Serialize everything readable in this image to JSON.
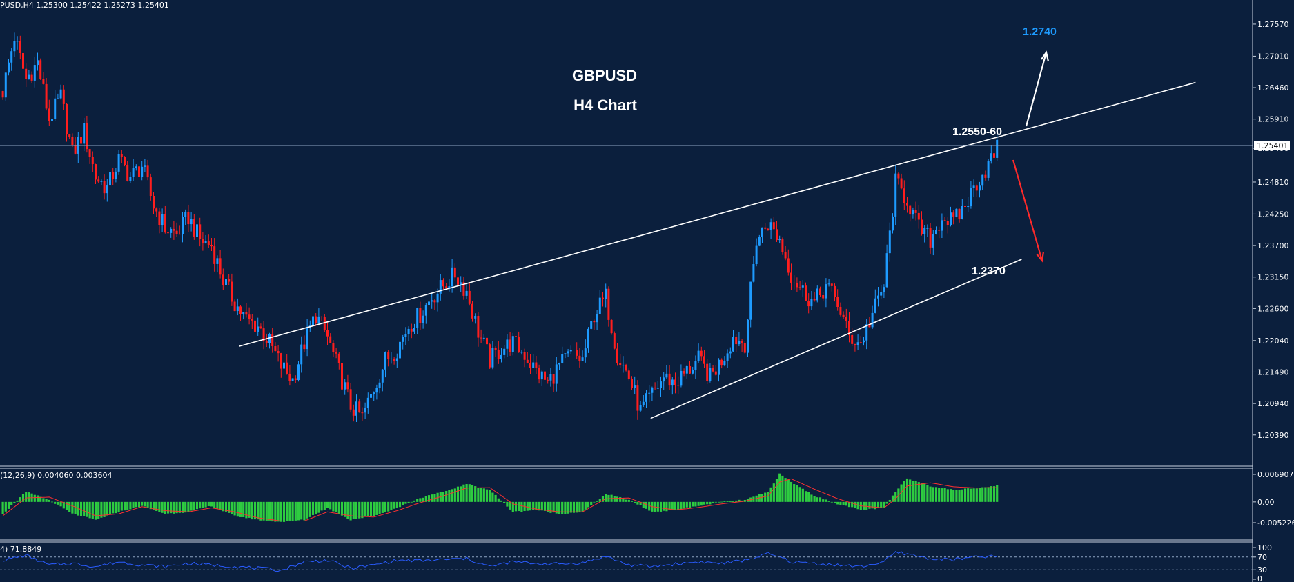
{
  "header": {
    "symbol_line": "PUSD,H4  1.25300 1.25422 1.25273 1.25401"
  },
  "chart_title": {
    "line1": "GBPUSD",
    "line2": "H4 Chart"
  },
  "annotations": {
    "resistance_label": "1.2550-60",
    "target_up_label": "1.2740",
    "target_down_label": "1.2370"
  },
  "colors": {
    "background": "#0b1f3d",
    "bull_candle": "#1e9bff",
    "bear_candle": "#ff1e1e",
    "histogram": "#2ecc40",
    "signal_line": "#ff3030",
    "rsi_line": "#2a5cff",
    "trend_line": "#ffffff",
    "up_arrow": "#ffffff",
    "down_arrow": "#ff2a2a"
  },
  "chart_data": [
    {
      "type": "candlestick",
      "title": "GBPUSD",
      "subtitle": "H4 Chart",
      "xlabel": "",
      "ylabel": "",
      "ylim": [
        1.2011,
        1.2775
      ],
      "y_ticks": [
        "1.27570",
        "1.27010",
        "1.26460",
        "1.25910",
        "1.25400",
        "1.24810",
        "1.24250",
        "1.23700",
        "1.23150",
        "1.22600",
        "1.22040",
        "1.21490",
        "1.20940",
        "1.20390"
      ],
      "current_price": "1.25401",
      "grid": false,
      "series": [
        {
          "name": "",
          "close_points": [
            [
              0,
              1.264
            ],
            [
              4,
              1.2735
            ],
            [
              8,
              1.266
            ],
            [
              12,
              1.269
            ],
            [
              16,
              1.259
            ],
            [
              20,
              1.263
            ],
            [
              24,
              1.253
            ],
            [
              28,
              1.257
            ],
            [
              32,
              1.249
            ],
            [
              36,
              1.247
            ],
            [
              40,
              1.252
            ],
            [
              44,
              1.249
            ],
            [
              48,
              1.251
            ],
            [
              52,
              1.244
            ],
            [
              56,
              1.24
            ],
            [
              60,
              1.239
            ],
            [
              64,
              1.242
            ],
            [
              68,
              1.238
            ],
            [
              72,
              1.237
            ],
            [
              76,
              1.231
            ],
            [
              80,
              1.227
            ],
            [
              84,
              1.224
            ],
            [
              88,
              1.223
            ],
            [
              92,
              1.22
            ],
            [
              96,
              1.216
            ],
            [
              100,
              1.2135
            ],
            [
              104,
              1.22
            ],
            [
              108,
              1.225
            ],
            [
              112,
              1.221
            ],
            [
              116,
              1.215
            ],
            [
              120,
              1.209
            ],
            [
              124,
              1.207
            ],
            [
              128,
              1.212
            ],
            [
              132,
              1.217
            ],
            [
              136,
              1.219
            ],
            [
              140,
              1.223
            ],
            [
              144,
              1.225
            ],
            [
              148,
              1.228
            ],
            [
              152,
              1.23
            ],
            [
              156,
              1.232
            ],
            [
              160,
              1.229
            ],
            [
              164,
              1.222
            ],
            [
              168,
              1.217
            ],
            [
              172,
              1.219
            ],
            [
              176,
              1.22
            ],
            [
              180,
              1.218
            ],
            [
              184,
              1.215
            ],
            [
              188,
              1.213
            ],
            [
              192,
              1.216
            ],
            [
              196,
              1.218
            ],
            [
              200,
              1.217
            ],
            [
              204,
              1.225
            ],
            [
              208,
              1.228
            ],
            [
              212,
              1.218
            ],
            [
              216,
              1.214
            ],
            [
              220,
              1.208
            ],
            [
              224,
              1.211
            ],
            [
              228,
              1.214
            ],
            [
              232,
              1.213
            ],
            [
              236,
              1.215
            ],
            [
              240,
              1.217
            ],
            [
              244,
              1.214
            ],
            [
              248,
              1.217
            ],
            [
              252,
              1.221
            ],
            [
              256,
              1.22
            ],
            [
              260,
              1.238
            ],
            [
              264,
              1.241
            ],
            [
              268,
              1.238
            ],
            [
              272,
              1.232
            ],
            [
              276,
              1.229
            ],
            [
              280,
              1.227
            ],
            [
              284,
              1.23
            ],
            [
              288,
              1.227
            ],
            [
              292,
              1.221
            ],
            [
              296,
              1.22
            ],
            [
              300,
              1.225
            ],
            [
              304,
              1.23
            ],
            [
              308,
              1.248
            ],
            [
              312,
              1.245
            ],
            [
              316,
              1.24
            ],
            [
              320,
              1.238
            ],
            [
              324,
              1.242
            ],
            [
              328,
              1.241
            ],
            [
              332,
              1.244
            ],
            [
              336,
              1.248
            ],
            [
              340,
              1.251
            ],
            [
              343,
              1.254
            ]
          ]
        }
      ],
      "trendlines": [
        {
          "name": "upper",
          "from": [
            82,
            1.2194
          ],
          "to": [
            412,
            1.2655
          ]
        },
        {
          "name": "lower",
          "from": [
            224,
            1.2068
          ],
          "to": [
            352,
            1.2346
          ]
        }
      ]
    },
    {
      "type": "histogram",
      "title": "(12,26,9) 0.004060 0.003604",
      "ylim": [
        -0.005226,
        0.006907
      ],
      "y_ticks": [
        "0.006907",
        "0.00",
        "-0.005226"
      ],
      "series": [
        {
          "name": "MACD histogram",
          "points": [
            [
              0,
              -0.003
            ],
            [
              8,
              0.0025
            ],
            [
              16,
              0.0005
            ],
            [
              24,
              -0.003
            ],
            [
              32,
              -0.0045
            ],
            [
              40,
              -0.0025
            ],
            [
              48,
              -0.001
            ],
            [
              56,
              -0.003
            ],
            [
              64,
              -0.0025
            ],
            [
              72,
              -0.001
            ],
            [
              80,
              -0.0035
            ],
            [
              88,
              -0.0045
            ],
            [
              96,
              -0.005
            ],
            [
              104,
              -0.0045
            ],
            [
              112,
              -0.0015
            ],
            [
              120,
              -0.0045
            ],
            [
              128,
              -0.0035
            ],
            [
              136,
              -0.0015
            ],
            [
              144,
              0.001
            ],
            [
              152,
              0.0025
            ],
            [
              160,
              0.0045
            ],
            [
              168,
              0.003
            ],
            [
              176,
              -0.0025
            ],
            [
              184,
              -0.002
            ],
            [
              192,
              -0.003
            ],
            [
              200,
              -0.0025
            ],
            [
              208,
              0.002
            ],
            [
              216,
              0.0005
            ],
            [
              224,
              -0.0025
            ],
            [
              232,
              -0.002
            ],
            [
              240,
              -0.001
            ],
            [
              248,
              0.0
            ],
            [
              256,
              0.0005
            ],
            [
              264,
              0.0025
            ],
            [
              268,
              0.007
            ],
            [
              272,
              0.005
            ],
            [
              280,
              0.0015
            ],
            [
              288,
              -0.0005
            ],
            [
              296,
              -0.002
            ],
            [
              304,
              -0.0015
            ],
            [
              308,
              0.0025
            ],
            [
              312,
              0.006
            ],
            [
              320,
              0.004
            ],
            [
              328,
              0.003
            ],
            [
              336,
              0.0035
            ],
            [
              343,
              0.0041
            ]
          ]
        },
        {
          "name": "Signal",
          "points": [
            [
              0,
              -0.0035
            ],
            [
              8,
              0.001
            ],
            [
              16,
              0.0012
            ],
            [
              24,
              -0.001
            ],
            [
              32,
              -0.0035
            ],
            [
              40,
              -0.003
            ],
            [
              48,
              -0.0012
            ],
            [
              56,
              -0.0022
            ],
            [
              64,
              -0.0025
            ],
            [
              72,
              -0.0015
            ],
            [
              80,
              -0.0025
            ],
            [
              88,
              -0.004
            ],
            [
              96,
              -0.0048
            ],
            [
              104,
              -0.0048
            ],
            [
              112,
              -0.0025
            ],
            [
              120,
              -0.0035
            ],
            [
              128,
              -0.0038
            ],
            [
              136,
              -0.0022
            ],
            [
              144,
              -0.0002
            ],
            [
              152,
              0.0015
            ],
            [
              160,
              0.0035
            ],
            [
              168,
              0.0036
            ],
            [
              176,
              -0.0005
            ],
            [
              184,
              -0.0018
            ],
            [
              192,
              -0.0025
            ],
            [
              200,
              -0.0025
            ],
            [
              208,
              0.0008
            ],
            [
              216,
              0.001
            ],
            [
              224,
              -0.0012
            ],
            [
              232,
              -0.002
            ],
            [
              240,
              -0.0014
            ],
            [
              248,
              -0.0005
            ],
            [
              256,
              0.0002
            ],
            [
              264,
              0.0015
            ],
            [
              268,
              0.005
            ],
            [
              272,
              0.0058
            ],
            [
              280,
              0.0032
            ],
            [
              288,
              0.0008
            ],
            [
              296,
              -0.001
            ],
            [
              304,
              -0.0015
            ],
            [
              308,
              0.0008
            ],
            [
              312,
              0.004
            ],
            [
              320,
              0.0048
            ],
            [
              328,
              0.0038
            ],
            [
              336,
              0.0035
            ],
            [
              343,
              0.0036
            ]
          ]
        }
      ]
    },
    {
      "type": "line",
      "title": "4) 71.8849",
      "ylim": [
        0,
        100
      ],
      "y_ticks": [
        "100",
        "70",
        "30",
        "0"
      ],
      "levels": [
        70,
        30
      ],
      "series": [
        {
          "name": "RSI",
          "points": [
            [
              0,
              60
            ],
            [
              8,
              75
            ],
            [
              16,
              45
            ],
            [
              24,
              50
            ],
            [
              32,
              40
            ],
            [
              40,
              55
            ],
            [
              48,
              45
            ],
            [
              56,
              40
            ],
            [
              64,
              50
            ],
            [
              72,
              45
            ],
            [
              80,
              40
            ],
            [
              88,
              35
            ],
            [
              96,
              28
            ],
            [
              104,
              55
            ],
            [
              112,
              60
            ],
            [
              120,
              35
            ],
            [
              128,
              45
            ],
            [
              136,
              60
            ],
            [
              144,
              58
            ],
            [
              152,
              62
            ],
            [
              160,
              65
            ],
            [
              168,
              40
            ],
            [
              176,
              55
            ],
            [
              184,
              50
            ],
            [
              192,
              48
            ],
            [
              200,
              52
            ],
            [
              208,
              72
            ],
            [
              216,
              45
            ],
            [
              224,
              40
            ],
            [
              232,
              48
            ],
            [
              240,
              55
            ],
            [
              248,
              50
            ],
            [
              256,
              60
            ],
            [
              264,
              80
            ],
            [
              268,
              70
            ],
            [
              272,
              55
            ],
            [
              280,
              50
            ],
            [
              288,
              45
            ],
            [
              296,
              40
            ],
            [
              304,
              55
            ],
            [
              308,
              85
            ],
            [
              312,
              80
            ],
            [
              320,
              65
            ],
            [
              328,
              62
            ],
            [
              336,
              70
            ],
            [
              343,
              72
            ]
          ]
        }
      ]
    }
  ]
}
